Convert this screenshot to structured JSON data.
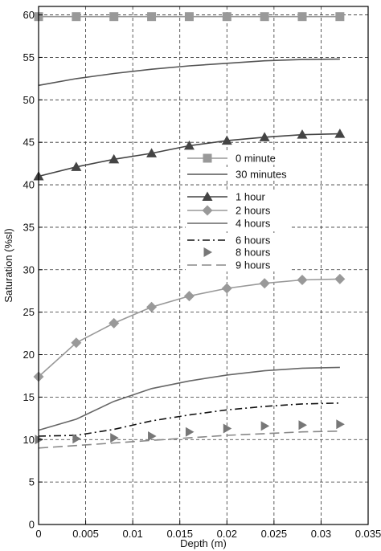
{
  "chart_data": {
    "type": "line",
    "title": "",
    "xlabel": "Depth (m)",
    "ylabel": "Saturation (%sl)",
    "xlim": [
      0,
      0.035
    ],
    "ylim": [
      0,
      61
    ],
    "x_ticks": [
      0,
      0.005,
      0.01,
      0.015,
      0.02,
      0.025,
      0.03,
      0.035
    ],
    "x_tick_labels": [
      "0",
      "0.005",
      "0.01",
      "0.015",
      "0.02",
      "0.025",
      "0.03",
      "0.035"
    ],
    "y_ticks": [
      0,
      5,
      10,
      15,
      20,
      25,
      30,
      35,
      40,
      45,
      50,
      55,
      60
    ],
    "y_tick_labels": [
      "0",
      "5",
      "10",
      "15",
      "20",
      "25",
      "30",
      "35",
      "40",
      "45",
      "50",
      "55",
      "60"
    ],
    "grid": true,
    "grid_style": "dashed",
    "legend_placement": "center",
    "series": [
      {
        "name": "0 minute",
        "color": "#999999",
        "line": "solid",
        "marker": "square",
        "x": [
          0,
          0.004,
          0.008,
          0.012,
          0.016,
          0.02,
          0.024,
          0.028,
          0.032
        ],
        "y": [
          59.8,
          59.8,
          59.8,
          59.8,
          59.8,
          59.8,
          59.8,
          59.8,
          59.8
        ]
      },
      {
        "name": "30 minutes",
        "color": "#555555",
        "line": "solid",
        "marker": "none",
        "x": [
          0,
          0.004,
          0.008,
          0.012,
          0.016,
          0.02,
          0.024,
          0.028,
          0.032
        ],
        "y": [
          51.7,
          52.5,
          53.1,
          53.6,
          54.0,
          54.3,
          54.6,
          54.75,
          54.8
        ]
      },
      {
        "name": "1 hour",
        "color": "#444444",
        "line": "solid",
        "marker": "triangle-up",
        "x": [
          0,
          0.004,
          0.008,
          0.012,
          0.016,
          0.02,
          0.024,
          0.028,
          0.032
        ],
        "y": [
          41.0,
          42.1,
          43.0,
          43.7,
          44.6,
          45.2,
          45.6,
          45.9,
          46.0
        ]
      },
      {
        "name": "2 hours",
        "color": "#999999",
        "line": "solid",
        "marker": "diamond",
        "x": [
          0,
          0.004,
          0.008,
          0.012,
          0.016,
          0.02,
          0.024,
          0.028,
          0.032
        ],
        "y": [
          17.4,
          21.4,
          23.7,
          25.6,
          26.9,
          27.8,
          28.4,
          28.8,
          28.9
        ]
      },
      {
        "name": "4 hours",
        "color": "#666666",
        "line": "solid",
        "marker": "none",
        "x": [
          0,
          0.004,
          0.008,
          0.012,
          0.016,
          0.02,
          0.024,
          0.028,
          0.032
        ],
        "y": [
          11.1,
          12.4,
          14.5,
          16.0,
          16.9,
          17.6,
          18.1,
          18.4,
          18.5
        ]
      },
      {
        "name": "6 hours",
        "color": "#111111",
        "line": "dashdot",
        "marker": "none",
        "x": [
          0,
          0.004,
          0.008,
          0.012,
          0.016,
          0.02,
          0.024,
          0.028,
          0.032
        ],
        "y": [
          10.4,
          10.5,
          11.2,
          12.2,
          12.9,
          13.5,
          13.9,
          14.2,
          14.3
        ]
      },
      {
        "name": "8 hours",
        "color": "#777777",
        "line": "none",
        "marker": "triangle-right",
        "x": [
          0,
          0.004,
          0.008,
          0.012,
          0.016,
          0.02,
          0.024,
          0.028,
          0.032
        ],
        "y": [
          10.0,
          10.1,
          10.2,
          10.4,
          10.9,
          11.3,
          11.6,
          11.7,
          11.8
        ]
      },
      {
        "name": "9 hours",
        "color": "#888888",
        "line": "longdash",
        "marker": "none",
        "x": [
          0,
          0.004,
          0.008,
          0.012,
          0.016,
          0.02,
          0.024,
          0.028,
          0.032
        ],
        "y": [
          9.0,
          9.3,
          9.6,
          9.9,
          10.2,
          10.5,
          10.7,
          10.9,
          11.0
        ]
      }
    ]
  }
}
